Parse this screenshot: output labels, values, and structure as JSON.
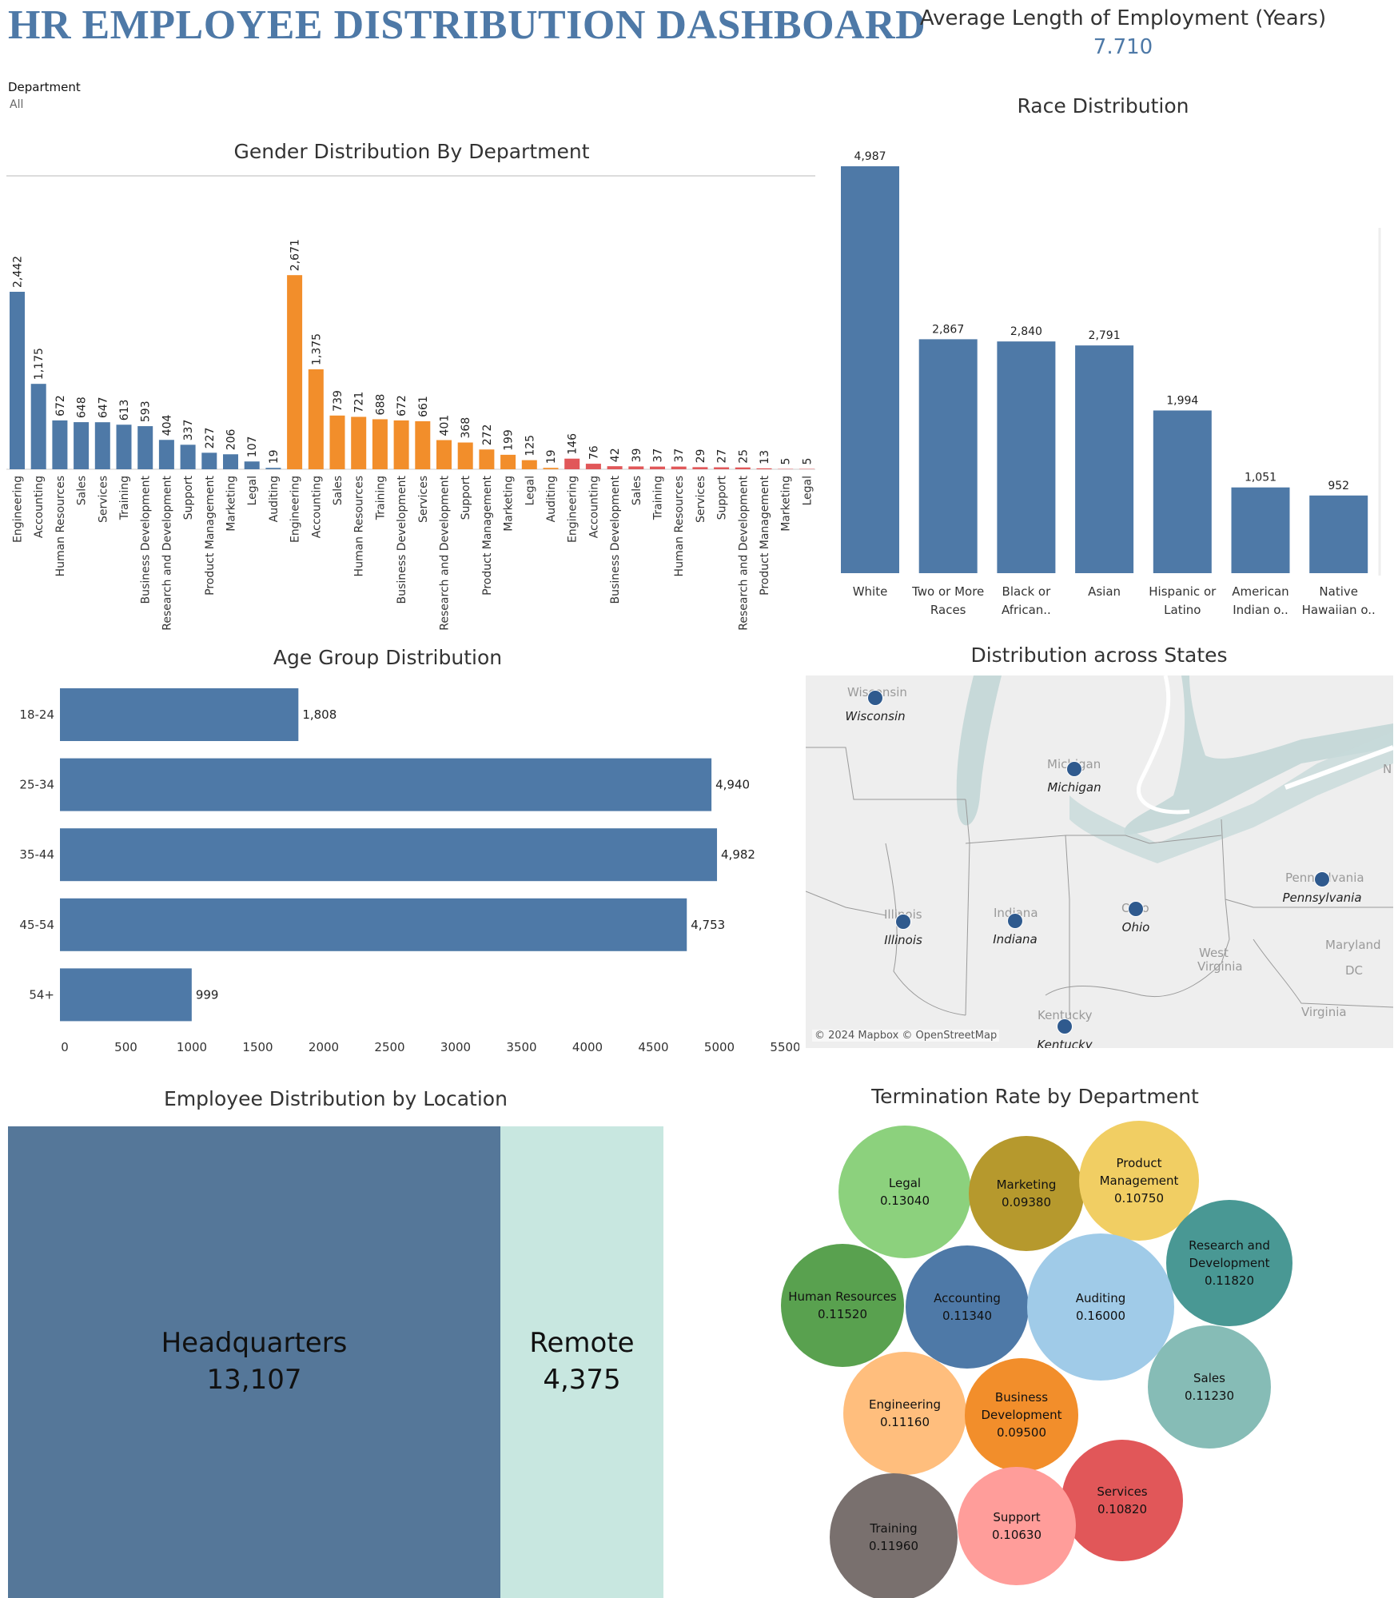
{
  "header": {
    "title": "HR EMPLOYEE DISTRIBUTION DASHBOARD",
    "kpi_label": "Average Length of Employment (Years)",
    "kpi_value": "7.710"
  },
  "filter": {
    "label": "Department",
    "value": "All"
  },
  "gender": {
    "title": "Gender Distribution By Department",
    "colors": [
      "#4e79a7",
      "#f28e2b",
      "#e15759"
    ]
  },
  "race": {
    "title": "Race Distribution"
  },
  "age": {
    "title": "Age Group Distribution"
  },
  "states": {
    "title": "Distribution across States",
    "credit": "© 2024 Mapbox © OpenStreetMap",
    "labels": [
      "Wisconsin",
      "Michigan",
      "Illinois",
      "Indiana",
      "Ohio",
      "Pennsylvania",
      "Kentucky"
    ],
    "places": [
      "Wisconsin",
      "Michigan",
      "Illinois",
      "Indiana",
      "Ohio",
      "Pennsylvania",
      "Maryland",
      "West",
      "Virginia",
      "Virginia",
      "Kentucky",
      "DC",
      "N"
    ]
  },
  "location": {
    "title": "Employee Distribution by Location",
    "items": [
      {
        "label": "Headquarters",
        "value": "13,107",
        "color": "#557799"
      },
      {
        "label": "Remote",
        "value": "4,375",
        "color": "#c8e7e0"
      }
    ]
  },
  "termination": {
    "title": "Termination Rate by Department"
  },
  "chart_data": [
    {
      "type": "bar",
      "title": "Gender Distribution By Department",
      "categories": [
        "Engineering",
        "Accounting",
        "Human Resources",
        "Sales",
        "Services",
        "Training",
        "Business Development",
        "Research and Development",
        "Support",
        "Product Management",
        "Marketing",
        "Legal",
        "Auditing",
        "Engineering",
        "Accounting",
        "Sales",
        "Human Resources",
        "Training",
        "Business Development",
        "Services",
        "Research and Development",
        "Support",
        "Product Management",
        "Marketing",
        "Legal",
        "Auditing",
        "Engineering",
        "Accounting",
        "Business Development",
        "Sales",
        "Training",
        "Human Resources",
        "Services",
        "Support",
        "Research and Development",
        "Product Management",
        "Marketing",
        "Legal"
      ],
      "values": [
        2442,
        1175,
        672,
        648,
        647,
        613,
        593,
        404,
        337,
        227,
        206,
        107,
        19,
        2671,
        1375,
        739,
        721,
        688,
        672,
        661,
        401,
        368,
        272,
        199,
        125,
        19,
        146,
        76,
        42,
        39,
        37,
        37,
        29,
        27,
        25,
        13,
        5,
        5
      ],
      "labels": [
        "2,442",
        "1,175",
        "672",
        "648",
        "647",
        "613",
        "593",
        "404",
        "337",
        "227",
        "206",
        "107",
        "19",
        "2,671",
        "1,375",
        "739",
        "721",
        "688",
        "672",
        "661",
        "401",
        "368",
        "272",
        "199",
        "125",
        "19",
        "146",
        "76",
        "42",
        "39",
        "37",
        "37",
        "29",
        "27",
        "25",
        "13",
        "5",
        "5"
      ],
      "groups": [
        0,
        0,
        0,
        0,
        0,
        0,
        0,
        0,
        0,
        0,
        0,
        0,
        0,
        1,
        1,
        1,
        1,
        1,
        1,
        1,
        1,
        1,
        1,
        1,
        1,
        1,
        2,
        2,
        2,
        2,
        2,
        2,
        2,
        2,
        2,
        2,
        2,
        2
      ],
      "ylim": [
        0,
        3300
      ],
      "grid": false
    },
    {
      "type": "bar",
      "title": "Race Distribution",
      "categories": [
        [
          "White"
        ],
        [
          "Two or More",
          "Races"
        ],
        [
          "Black or",
          "African.."
        ],
        [
          "Asian"
        ],
        [
          "Hispanic or",
          "Latino"
        ],
        [
          "American",
          "Indian o.."
        ],
        [
          "Native",
          "Hawaiian o.."
        ]
      ],
      "values": [
        4987,
        2867,
        2840,
        2791,
        1994,
        1051,
        952
      ],
      "labels": [
        "4,987",
        "2,867",
        "2,840",
        "2,791",
        "1,994",
        "1,051",
        "952"
      ],
      "color": "#4e79a7",
      "ylim": [
        0,
        5200
      ]
    },
    {
      "type": "bar",
      "orientation": "horizontal",
      "title": "Age Group Distribution",
      "categories": [
        "18-24",
        "25-34",
        "35-44",
        "45-54",
        "54+"
      ],
      "values": [
        1808,
        4940,
        4982,
        4753,
        999
      ],
      "labels": [
        "1,808",
        "4,940",
        "4,982",
        "4,753",
        "999"
      ],
      "xticks": [
        "0",
        "500",
        "1000",
        "1500",
        "2000",
        "2500",
        "3000",
        "3500",
        "4000",
        "4500",
        "5000",
        "5500"
      ],
      "xlim": [
        0,
        5500
      ],
      "color": "#4e79a7"
    },
    {
      "type": "bubble",
      "title": "Termination Rate by Department",
      "items": [
        {
          "name": "Legal",
          "value": "0.13040",
          "color": "#8cd17d"
        },
        {
          "name": "Marketing",
          "value": "0.09380",
          "color": "#b6992d"
        },
        {
          "name": "Product Management",
          "value": "0.10750",
          "color": "#f1ce63"
        },
        {
          "name": "Research and Development",
          "value": "0.11820",
          "color": "#499894"
        },
        {
          "name": "Human Resources",
          "value": "0.11520",
          "color": "#59a14f"
        },
        {
          "name": "Accounting",
          "value": "0.11340",
          "color": "#4e79a7"
        },
        {
          "name": "Auditing",
          "value": "0.16000",
          "color": "#a0cbe8"
        },
        {
          "name": "Sales",
          "value": "0.11230",
          "color": "#86bcb6"
        },
        {
          "name": "Engineering",
          "value": "0.11160",
          "color": "#ffbe7d"
        },
        {
          "name": "Business Development",
          "value": "0.09500",
          "color": "#f28e2b"
        },
        {
          "name": "Services",
          "value": "0.10820",
          "color": "#e15759"
        },
        {
          "name": "Training",
          "value": "0.11960",
          "color": "#79706e"
        },
        {
          "name": "Support",
          "value": "0.10630",
          "color": "#ff9d9a"
        }
      ]
    }
  ]
}
